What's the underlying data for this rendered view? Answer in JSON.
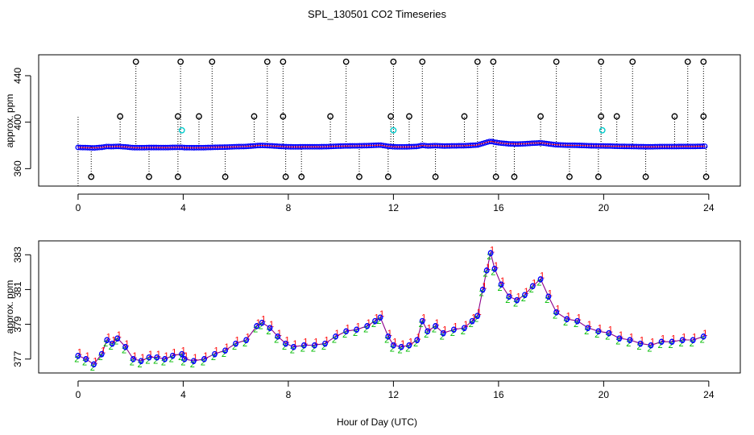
{
  "figure": {
    "title": "SPL_130501  CO2 Timeseries",
    "xlabel": "Hour of Day (UTC)"
  },
  "colors": {
    "frame": "#000000",
    "raw_circle": "#000000",
    "qc_circle": "#00cccc",
    "series_blue": "#0000ff",
    "series_green": "#00bb00",
    "series_red": "#ff0000",
    "series_line": "#8b008b"
  },
  "chart_data": [
    {
      "type": "scatter",
      "panel": "top",
      "ylabel": "approx. ppm",
      "xlim": [
        -1.5,
        25.2
      ],
      "ylim": [
        345,
        458
      ],
      "xticks": [
        0,
        4,
        8,
        12,
        16,
        20,
        24
      ],
      "xtick_labels": [
        "0",
        "4",
        "8",
        "12",
        "16",
        "20",
        "24"
      ],
      "yticks": [
        360,
        400,
        440
      ],
      "ytick_labels": [
        "360",
        "400",
        "440"
      ],
      "baseline": 379,
      "spikes_high": [
        2.2,
        3.9,
        5.1,
        7.2,
        7.8,
        10.2,
        12.0,
        13.1,
        15.2,
        15.8,
        18.2,
        19.9,
        21.1,
        23.2,
        23.8
      ],
      "spikes_mid": [
        1.6,
        3.8,
        4.6,
        6.7,
        7.8,
        9.6,
        11.9,
        12.6,
        14.7,
        17.6,
        19.9,
        20.5,
        22.7,
        23.8
      ],
      "spikes_low": [
        0.5,
        2.7,
        3.8,
        5.6,
        7.9,
        8.5,
        10.7,
        11.8,
        13.6,
        15.9,
        16.6,
        18.7,
        19.8,
        21.6,
        23.9
      ],
      "high_value": 452,
      "mid_value": 405,
      "low_value": 353,
      "cyan_points": [
        [
          3.95,
          393
        ],
        [
          12.0,
          393
        ],
        [
          19.95,
          393
        ]
      ]
    },
    {
      "type": "line",
      "panel": "bottom",
      "ylabel": "approx. ppm",
      "xlim": [
        -1.5,
        25.2
      ],
      "ylim": [
        376.2,
        383.8
      ],
      "xticks": [
        0,
        4,
        8,
        12,
        16,
        20,
        24
      ],
      "xtick_labels": [
        "0",
        "4",
        "8",
        "12",
        "16",
        "20",
        "24"
      ],
      "yticks": [
        377,
        379,
        381,
        383
      ],
      "ytick_labels": [
        "377",
        "379",
        "381",
        "383"
      ],
      "series": [
        {
          "name": "1",
          "color": "red"
        },
        {
          "name": "2",
          "color": "green"
        },
        {
          "name": "3",
          "color": "blue"
        }
      ],
      "x": [
        0.0,
        0.3,
        0.6,
        0.9,
        1.1,
        1.3,
        1.5,
        1.8,
        2.1,
        2.4,
        2.7,
        3.0,
        3.3,
        3.6,
        3.95,
        4.05,
        4.4,
        4.8,
        5.2,
        5.6,
        6.0,
        6.4,
        6.8,
        7.0,
        7.3,
        7.6,
        7.9,
        8.2,
        8.6,
        9.0,
        9.4,
        9.8,
        10.2,
        10.6,
        11.0,
        11.3,
        11.5,
        11.8,
        12.0,
        12.3,
        12.6,
        12.9,
        13.1,
        13.3,
        13.6,
        13.9,
        14.3,
        14.7,
        15.0,
        15.2,
        15.4,
        15.55,
        15.7,
        15.85,
        16.1,
        16.4,
        16.7,
        17.0,
        17.3,
        17.6,
        17.9,
        18.2,
        18.6,
        19.0,
        19.4,
        19.8,
        20.2,
        20.6,
        21.0,
        21.4,
        21.8,
        22.2,
        22.6,
        23.0,
        23.4,
        23.8
      ],
      "values": [
        377.2,
        377.0,
        376.7,
        377.3,
        378.1,
        377.9,
        378.2,
        377.7,
        377.0,
        376.9,
        377.1,
        377.1,
        377.0,
        377.2,
        377.3,
        377.0,
        376.9,
        377.0,
        377.3,
        377.5,
        377.9,
        378.1,
        378.9,
        379.1,
        378.8,
        378.3,
        377.9,
        377.7,
        377.8,
        377.8,
        377.9,
        378.3,
        378.6,
        378.7,
        378.9,
        379.2,
        379.4,
        378.3,
        377.8,
        377.7,
        377.8,
        378.1,
        379.2,
        378.6,
        378.9,
        378.5,
        378.7,
        378.8,
        379.2,
        379.5,
        381.0,
        382.1,
        383.1,
        382.2,
        381.3,
        380.6,
        380.4,
        380.7,
        381.2,
        381.6,
        380.6,
        379.7,
        379.3,
        379.2,
        378.8,
        378.6,
        378.5,
        378.2,
        378.1,
        377.9,
        377.8,
        378.0,
        378.0,
        378.1,
        378.1,
        378.3
      ]
    }
  ]
}
